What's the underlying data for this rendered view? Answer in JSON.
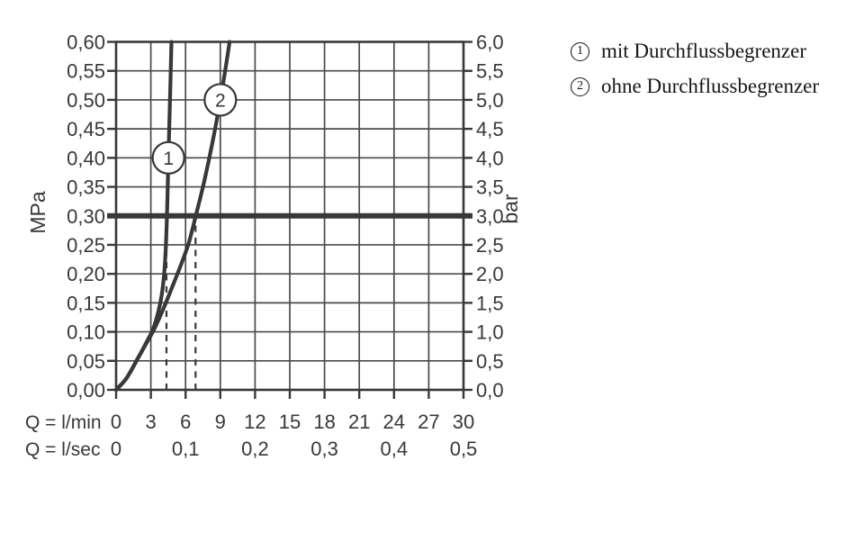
{
  "colors": {
    "ink": "#383838",
    "grid": "#4a4a4a",
    "legend_ink": "#161616",
    "background": "#ffffff"
  },
  "chart_data": {
    "type": "line",
    "title": "",
    "x_axis": {
      "label_lmin": "Q = l/min",
      "label_lsec": "Q = l/sec",
      "range_lmin": [
        0,
        30
      ],
      "ticks_lmin": [
        "0",
        "3",
        "6",
        "9",
        "12",
        "15",
        "18",
        "21",
        "24",
        "27",
        "30"
      ],
      "ticks_lsec": [
        {
          "pos": 0,
          "label": "0"
        },
        {
          "pos": 6,
          "label": "0,1"
        },
        {
          "pos": 12,
          "label": "0,2"
        },
        {
          "pos": 18,
          "label": "0,3"
        },
        {
          "pos": 24,
          "label": "0,4"
        },
        {
          "pos": 30,
          "label": "0,5"
        }
      ]
    },
    "y_axis_left": {
      "label": "MPa",
      "range": [
        0,
        0.6
      ],
      "step": 0.05,
      "tick_labels": [
        "0,60",
        "0,55",
        "0,50",
        "0,45",
        "0,40",
        "0,35",
        "0,30",
        "0,25",
        "0,20",
        "0,15",
        "0,10",
        "0,05",
        "0,00"
      ]
    },
    "y_axis_right": {
      "label": "bar",
      "range": [
        0,
        6.0
      ],
      "step": 0.5,
      "tick_labels": [
        "6,0",
        "5,5",
        "5,0",
        "4,5",
        "4,0",
        "3,5",
        "3,0",
        "2,5",
        "2,0",
        "1,5",
        "1,0",
        "0,5",
        "0,0"
      ]
    },
    "grid": true,
    "reference_line": {
      "mpa": 0.3,
      "bar": 3.0
    },
    "dashed_guides_lmin": [
      4.35,
      6.86
    ],
    "series": [
      {
        "id": "1",
        "name": "mit Durchflussbegrenzer",
        "marker": {
          "label": "1",
          "at": [
            4.52,
            0.4
          ]
        },
        "points": [
          [
            0,
            0
          ],
          [
            0.9,
            0.02
          ],
          [
            1.9,
            0.055
          ],
          [
            2.7,
            0.085
          ],
          [
            3.2,
            0.105
          ],
          [
            3.65,
            0.135
          ],
          [
            3.95,
            0.165
          ],
          [
            4.15,
            0.2
          ],
          [
            4.28,
            0.24
          ],
          [
            4.36,
            0.28
          ],
          [
            4.42,
            0.32
          ],
          [
            4.5,
            0.385
          ],
          [
            4.6,
            0.46
          ],
          [
            4.7,
            0.535
          ],
          [
            4.78,
            0.6
          ]
        ]
      },
      {
        "id": "2",
        "name": "ohne Durchflussbegrenzer",
        "marker": {
          "label": "2",
          "at": [
            9.0,
            0.5
          ]
        },
        "points": [
          [
            0,
            0
          ],
          [
            0.9,
            0.02
          ],
          [
            1.9,
            0.055
          ],
          [
            2.75,
            0.085
          ],
          [
            3.3,
            0.105
          ],
          [
            3.98,
            0.135
          ],
          [
            4.6,
            0.165
          ],
          [
            5.2,
            0.195
          ],
          [
            5.78,
            0.225
          ],
          [
            6.3,
            0.255
          ],
          [
            6.88,
            0.3
          ],
          [
            7.5,
            0.35
          ],
          [
            8.05,
            0.4
          ],
          [
            8.55,
            0.45
          ],
          [
            9.0,
            0.5
          ],
          [
            9.42,
            0.55
          ],
          [
            9.8,
            0.6
          ]
        ]
      }
    ],
    "legend": [
      {
        "symbol": "1",
        "label": "mit Durchflussbegrenzer"
      },
      {
        "symbol": "2",
        "label": "ohne Durchflussbegrenzer"
      }
    ],
    "legend_position": "top-right"
  }
}
